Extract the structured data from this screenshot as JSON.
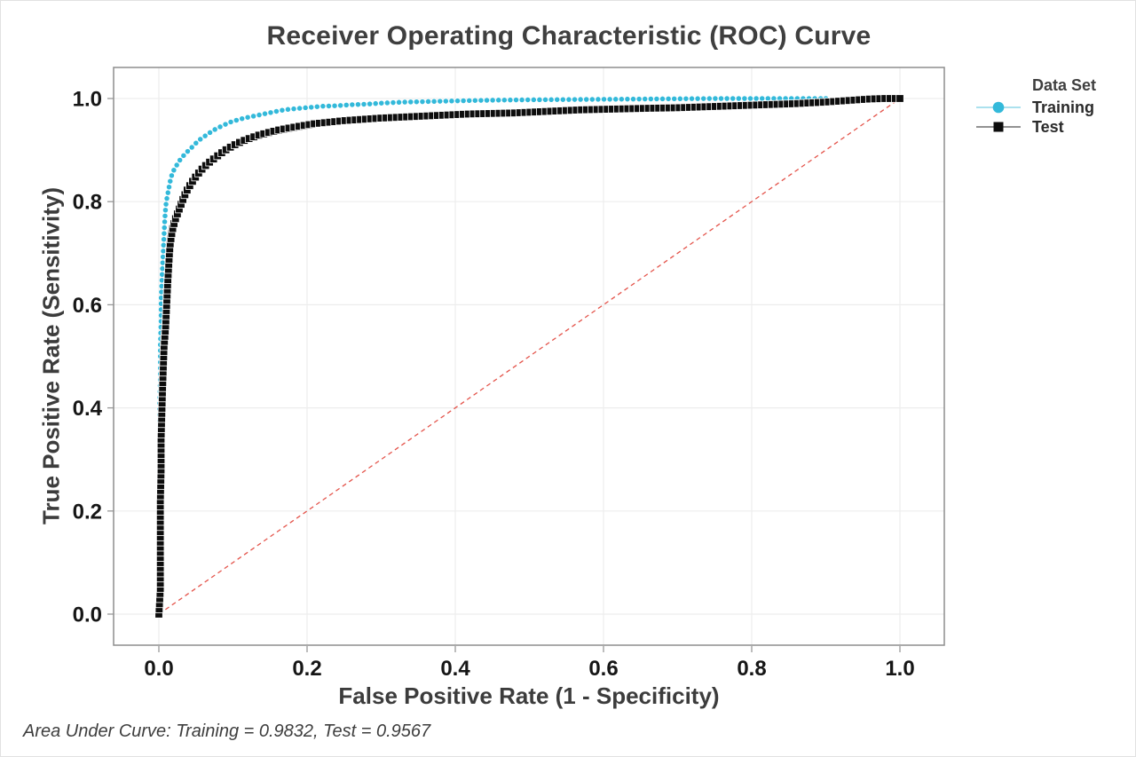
{
  "title": "Receiver Operating Characteristic (ROC) Curve",
  "footer": "Area Under Curve: Training = 0.9832, Test = 0.9567",
  "legend": {
    "title": "Data Set",
    "items": [
      {
        "label": "Training",
        "marker": "circle",
        "color": "#33b9da",
        "line_color": "#8fd7e9"
      },
      {
        "label": "Test",
        "marker": "square",
        "color": "#0d0d0d",
        "line_color": "#6f6f6f"
      }
    ]
  },
  "colors": {
    "background": "#ffffff",
    "plot_border": "#8d8d8d",
    "gridline": "#ededed",
    "tick_mark": "#999999",
    "tick_text": "#161616",
    "title_text": "#3f3f3f",
    "axis_text": "#3c3c3c",
    "footer_text": "#3e3e3e",
    "reference_line": "#e4544b",
    "training": "#33b9da",
    "test": "#0d0d0d"
  },
  "chart_data": {
    "type": "line",
    "title": "Receiver Operating Characteristic (ROC) Curve",
    "xlabel": "False Positive Rate (1 - Specificity)",
    "ylabel": "True Positive Rate (Sensitivity)",
    "xlim": [
      -0.06,
      1.06
    ],
    "ylim": [
      -0.06,
      1.06
    ],
    "grid": true,
    "legend_position": "right-top",
    "x_ticks": {
      "values": [
        0,
        0.2,
        0.4,
        0.6,
        0.8,
        1.0
      ],
      "labels": [
        "0.0",
        "0.2",
        "0.4",
        "0.6",
        "0.8",
        "1.0"
      ]
    },
    "y_ticks": {
      "values": [
        0,
        0.2,
        0.4,
        0.6,
        0.8,
        1.0
      ],
      "labels": [
        "0.0",
        "0.2",
        "0.4",
        "0.6",
        "0.8",
        "1.0"
      ]
    },
    "reference_line": {
      "from": [
        0,
        0
      ],
      "to": [
        1,
        1
      ],
      "color": "#e4544b",
      "style": "dashed"
    },
    "annotations": {
      "auc_training": 0.9832,
      "auc_test": 0.9567
    },
    "series": [
      {
        "name": "Training",
        "marker": "circle",
        "color": "#33b9da",
        "points": [
          [
            0.0,
            0.0
          ],
          [
            0.001,
            0.08
          ],
          [
            0.001,
            0.16
          ],
          [
            0.001,
            0.24
          ],
          [
            0.001,
            0.32
          ],
          [
            0.001,
            0.4
          ],
          [
            0.002,
            0.46
          ],
          [
            0.002,
            0.52
          ],
          [
            0.003,
            0.57
          ],
          [
            0.003,
            0.61
          ],
          [
            0.004,
            0.645
          ],
          [
            0.005,
            0.675
          ],
          [
            0.006,
            0.705
          ],
          [
            0.007,
            0.735
          ],
          [
            0.008,
            0.765
          ],
          [
            0.009,
            0.785
          ],
          [
            0.01,
            0.8
          ],
          [
            0.012,
            0.815
          ],
          [
            0.014,
            0.83
          ],
          [
            0.016,
            0.845
          ],
          [
            0.019,
            0.858
          ],
          [
            0.023,
            0.868
          ],
          [
            0.027,
            0.878
          ],
          [
            0.032,
            0.887
          ],
          [
            0.037,
            0.895
          ],
          [
            0.043,
            0.903
          ],
          [
            0.049,
            0.912
          ],
          [
            0.055,
            0.92
          ],
          [
            0.062,
            0.927
          ],
          [
            0.07,
            0.935
          ],
          [
            0.078,
            0.942
          ],
          [
            0.087,
            0.948
          ],
          [
            0.096,
            0.954
          ],
          [
            0.105,
            0.958
          ],
          [
            0.115,
            0.962
          ],
          [
            0.125,
            0.965
          ],
          [
            0.135,
            0.968
          ],
          [
            0.145,
            0.971
          ],
          [
            0.155,
            0.974
          ],
          [
            0.165,
            0.977
          ],
          [
            0.175,
            0.979
          ],
          [
            0.19,
            0.981
          ],
          [
            0.205,
            0.983
          ],
          [
            0.22,
            0.985
          ],
          [
            0.24,
            0.986
          ],
          [
            0.26,
            0.988
          ],
          [
            0.28,
            0.989
          ],
          [
            0.3,
            0.991
          ],
          [
            0.33,
            0.993
          ],
          [
            0.36,
            0.994
          ],
          [
            0.39,
            0.995
          ],
          [
            0.42,
            0.996
          ],
          [
            0.46,
            0.997
          ],
          [
            0.5,
            0.9975
          ],
          [
            0.55,
            0.998
          ],
          [
            0.6,
            0.9985
          ],
          [
            0.65,
            0.999
          ],
          [
            0.7,
            0.9995
          ],
          [
            0.75,
            1.0
          ],
          [
            0.8,
            1.0
          ],
          [
            0.85,
            1.0
          ],
          [
            0.9,
            1.0
          ]
        ]
      },
      {
        "name": "Test",
        "marker": "square",
        "color": "#0d0d0d",
        "points": [
          [
            0.0,
            0.0
          ],
          [
            0.002,
            0.05
          ],
          [
            0.002,
            0.1
          ],
          [
            0.002,
            0.16
          ],
          [
            0.002,
            0.22
          ],
          [
            0.003,
            0.28
          ],
          [
            0.003,
            0.34
          ],
          [
            0.004,
            0.39
          ],
          [
            0.005,
            0.44
          ],
          [
            0.006,
            0.48
          ],
          [
            0.007,
            0.52
          ],
          [
            0.009,
            0.555
          ],
          [
            0.01,
            0.585
          ],
          [
            0.011,
            0.615
          ],
          [
            0.012,
            0.645
          ],
          [
            0.013,
            0.67
          ],
          [
            0.014,
            0.695
          ],
          [
            0.015,
            0.715
          ],
          [
            0.017,
            0.735
          ],
          [
            0.019,
            0.75
          ],
          [
            0.022,
            0.765
          ],
          [
            0.026,
            0.78
          ],
          [
            0.03,
            0.795
          ],
          [
            0.034,
            0.81
          ],
          [
            0.038,
            0.822
          ],
          [
            0.043,
            0.834
          ],
          [
            0.048,
            0.845
          ],
          [
            0.054,
            0.856
          ],
          [
            0.06,
            0.866
          ],
          [
            0.067,
            0.875
          ],
          [
            0.075,
            0.884
          ],
          [
            0.083,
            0.893
          ],
          [
            0.092,
            0.902
          ],
          [
            0.102,
            0.91
          ],
          [
            0.112,
            0.917
          ],
          [
            0.123,
            0.923
          ],
          [
            0.135,
            0.929
          ],
          [
            0.148,
            0.934
          ],
          [
            0.162,
            0.939
          ],
          [
            0.177,
            0.943
          ],
          [
            0.193,
            0.947
          ],
          [
            0.21,
            0.951
          ],
          [
            0.23,
            0.954
          ],
          [
            0.25,
            0.957
          ],
          [
            0.27,
            0.959
          ],
          [
            0.3,
            0.962
          ],
          [
            0.33,
            0.964
          ],
          [
            0.36,
            0.966
          ],
          [
            0.39,
            0.968
          ],
          [
            0.42,
            0.97
          ],
          [
            0.45,
            0.971
          ],
          [
            0.48,
            0.972
          ],
          [
            0.51,
            0.974
          ],
          [
            0.54,
            0.976
          ],
          [
            0.57,
            0.978
          ],
          [
            0.6,
            0.979
          ],
          [
            0.63,
            0.98
          ],
          [
            0.66,
            0.981
          ],
          [
            0.7,
            0.982
          ],
          [
            0.74,
            0.984
          ],
          [
            0.78,
            0.986
          ],
          [
            0.82,
            0.988
          ],
          [
            0.86,
            0.99
          ],
          [
            0.9,
            0.993
          ],
          [
            0.93,
            0.996
          ],
          [
            0.96,
            0.999
          ],
          [
            0.98,
            1.0
          ],
          [
            1.0,
            1.0
          ]
        ]
      }
    ]
  }
}
